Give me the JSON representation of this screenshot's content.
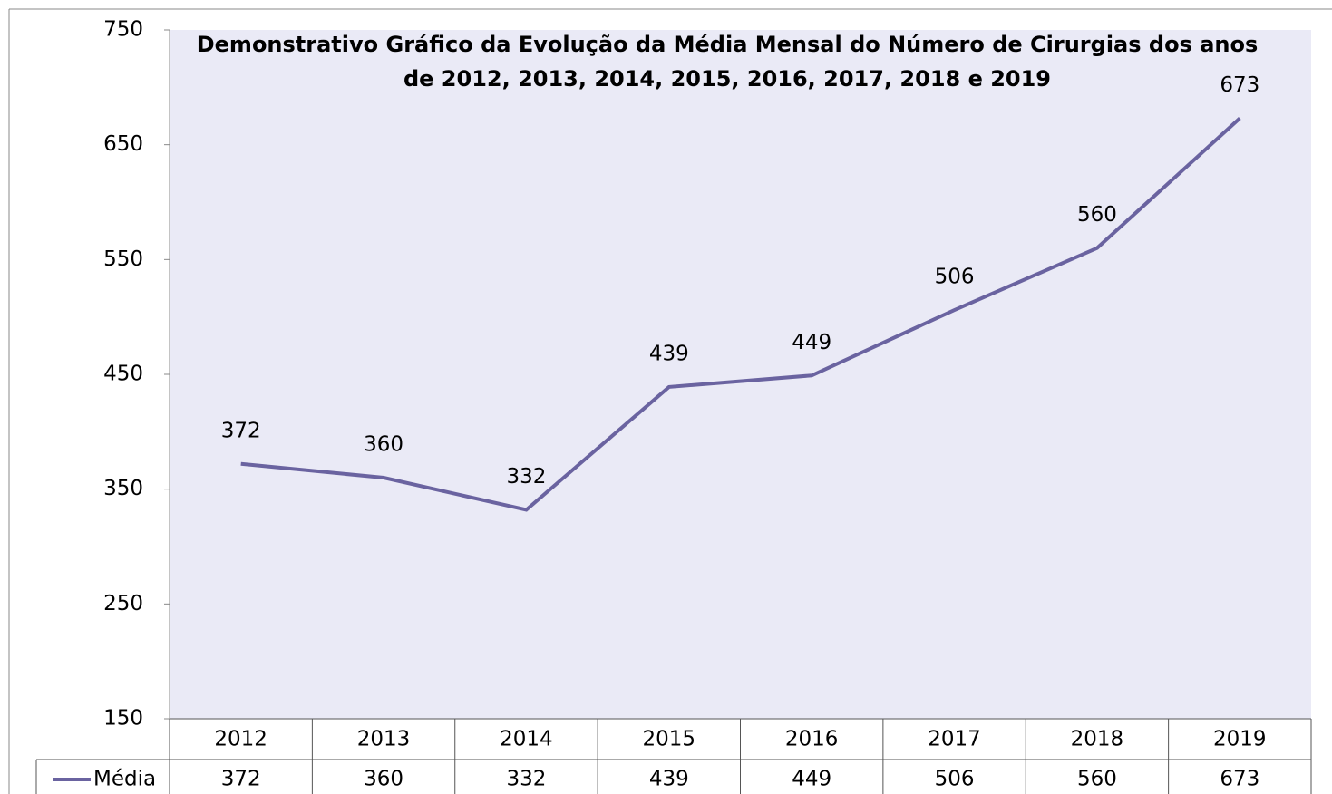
{
  "chart_data": {
    "type": "line",
    "title": [
      "Demonstrativo Gráfico da Evolução da Média Mensal do Número de Cirurgias dos anos",
      "de  2012, 2013, 2014, 2015, 2016, 2017, 2018 e 2019"
    ],
    "categories": [
      "2012",
      "2013",
      "2014",
      "2015",
      "2016",
      "2017",
      "2018",
      "2019"
    ],
    "series": [
      {
        "name": "Média",
        "color": "#6a63a0",
        "values": [
          372,
          360,
          332,
          439,
          449,
          506,
          560,
          673
        ]
      }
    ],
    "ylim": [
      150,
      750
    ],
    "yticks": [
      150,
      250,
      350,
      450,
      550,
      650,
      750
    ],
    "grid": false,
    "data_table": true
  }
}
